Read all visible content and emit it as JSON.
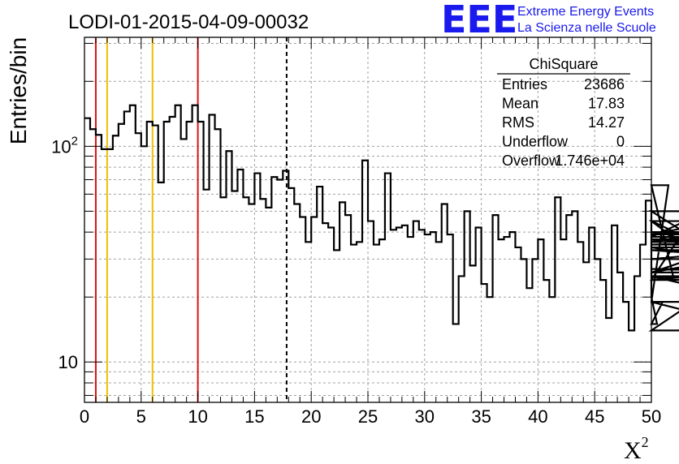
{
  "colors": {
    "histogram": "#000000",
    "red_lines": "#dd1111",
    "yellow_lines": "#f0c000",
    "dashed_line": "#000000",
    "logo": "#1a1aee"
  },
  "header": {
    "title": "LODI-01-2015-04-09-00032",
    "logo_letters": "EEE",
    "logo_line1": "Extreme Energy Events",
    "logo_line2": "La Scienza nelle Scuole"
  },
  "chart_data": {
    "type": "histogram",
    "title": "LODI-01-2015-04-09-00032",
    "xlabel": "X",
    "xlabel_sup": "2",
    "ylabel": "Entries/bin",
    "xlim": [
      0,
      50
    ],
    "ylim": [
      6.5,
      320
    ],
    "yscale": "log",
    "grid": true,
    "bin_width": 0.5,
    "x_ticks": [
      0,
      5,
      10,
      15,
      20,
      25,
      30,
      35,
      40,
      45,
      50
    ],
    "x_tick_labels": [
      "0",
      "5",
      "10",
      "15",
      "20",
      "25",
      "30",
      "35",
      "40",
      "45",
      "50"
    ],
    "y_tick_labels": [
      {
        "value": 10,
        "base": "10",
        "exp": ""
      },
      {
        "value": 100,
        "base": "10",
        "exp": "2"
      }
    ],
    "values": [
      135,
      120,
      113,
      97,
      97,
      112,
      127,
      145,
      155,
      115,
      100,
      130,
      125,
      68,
      130,
      137,
      155,
      108,
      130,
      155,
      130,
      63,
      140,
      120,
      58,
      95,
      62,
      78,
      58,
      54,
      75,
      57,
      52,
      72,
      70,
      77,
      64,
      54,
      47,
      36,
      47,
      65,
      44,
      42,
      33,
      55,
      48,
      35,
      36,
      86,
      45,
      35,
      37,
      75,
      41,
      42,
      43,
      38,
      45,
      41,
      39,
      40,
      36,
      54,
      39,
      15,
      25,
      50,
      28,
      42,
      23,
      20,
      48,
      37,
      38,
      40,
      34,
      30,
      22,
      30,
      37,
      24,
      20,
      58,
      37,
      48,
      50,
      36,
      29,
      42,
      30,
      24,
      16,
      43,
      26,
      19,
      14,
      25,
      35,
      56,
      20,
      15,
      19,
      66,
      24,
      38,
      45,
      37,
      37,
      36,
      40,
      39,
      45,
      25,
      24,
      26,
      36,
      50,
      25,
      19,
      14,
      33,
      30,
      34,
      27,
      27,
      26,
      35,
      37
    ],
    "vertical_lines": [
      {
        "x": 1,
        "style": "red"
      },
      {
        "x": 10,
        "style": "red"
      },
      {
        "x": 2,
        "style": "yellow"
      },
      {
        "x": 6,
        "style": "yellow"
      },
      {
        "x": 17.83,
        "style": "dashed"
      }
    ],
    "legend_position": "top-right",
    "stats": {
      "name": "ChiSquare",
      "rows": [
        {
          "label": "Entries",
          "value": "23686"
        },
        {
          "label": "Mean",
          "value": "17.83"
        },
        {
          "label": "RMS",
          "value": "14.27"
        },
        {
          "label": "Underflow",
          "value": "0"
        },
        {
          "label": "Overflow",
          "value": "1.746e+04"
        }
      ]
    }
  }
}
